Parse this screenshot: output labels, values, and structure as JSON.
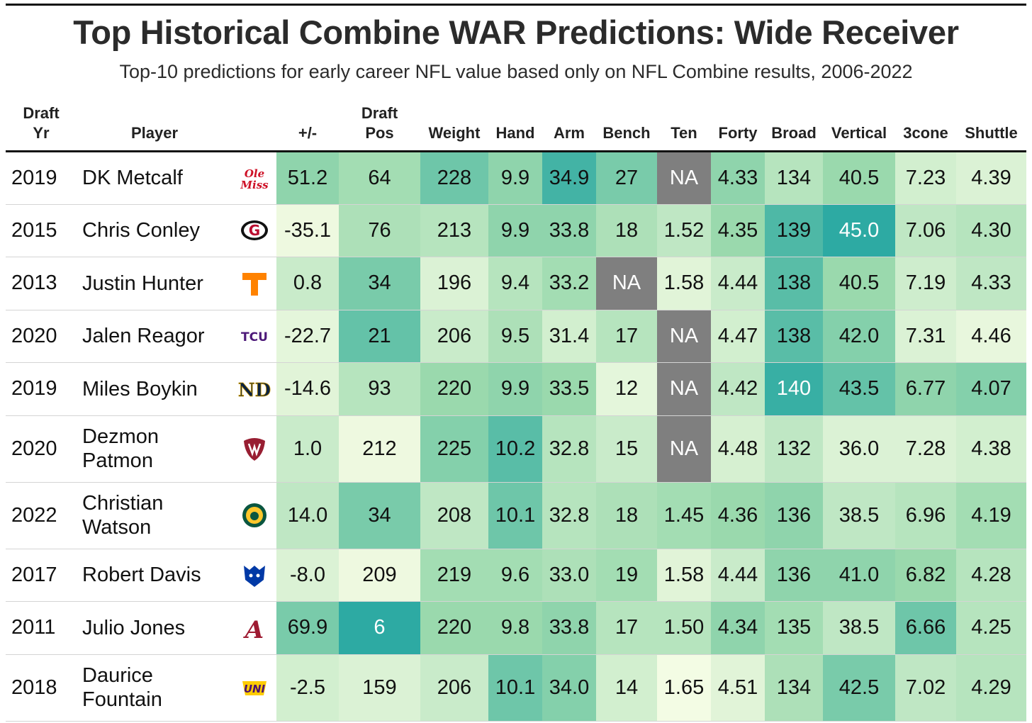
{
  "chart_data": {
    "type": "table",
    "title": "Top Historical Combine WAR Predictions: Wide Receiver",
    "subtitle": "Top-10 predictions for early career NFL value based only on NFL Combine results, 2006-2022",
    "columns": [
      {
        "key": "yr",
        "l1": "Draft",
        "l2": "Yr"
      },
      {
        "key": "player",
        "l1": "",
        "l2": "Player"
      },
      {
        "key": "logo",
        "l1": "",
        "l2": ""
      },
      {
        "key": "pm",
        "l1": "",
        "l2": "+/-"
      },
      {
        "key": "pos",
        "l1": "Draft",
        "l2": "Pos"
      },
      {
        "key": "weight",
        "l1": "",
        "l2": "Weight"
      },
      {
        "key": "hand",
        "l1": "",
        "l2": "Hand"
      },
      {
        "key": "arm",
        "l1": "",
        "l2": "Arm"
      },
      {
        "key": "bench",
        "l1": "",
        "l2": "Bench"
      },
      {
        "key": "ten",
        "l1": "",
        "l2": "Ten"
      },
      {
        "key": "forty",
        "l1": "",
        "l2": "Forty"
      },
      {
        "key": "broad",
        "l1": "",
        "l2": "Broad"
      },
      {
        "key": "vertical",
        "l1": "",
        "l2": "Vertical"
      },
      {
        "key": "cone",
        "l1": "",
        "l2": "3cone"
      },
      {
        "key": "shuttle",
        "l1": "",
        "l2": "Shuttle"
      }
    ],
    "rows": [
      {
        "yr": "2019",
        "player": [
          "DK Metcalf"
        ],
        "school": "Ole Miss",
        "pm": "51.2",
        "pos": "64",
        "weight": "228",
        "hand": "9.9",
        "arm": "34.9",
        "bench": "27",
        "ten": "NA",
        "forty": "4.33",
        "broad": "134",
        "vertical": "40.5",
        "cone": "7.23",
        "shuttle": "4.39",
        "shade": {
          "pm": 0.55,
          "pos": 0.45,
          "weight": 0.7,
          "hand": 0.55,
          "arm": 0.9,
          "bench": 0.65,
          "forty": 0.55,
          "broad": 0.35,
          "vertical": 0.5,
          "cone": 0.2,
          "shuttle": 0.15
        }
      },
      {
        "yr": "2015",
        "player": [
          "Chris Conley"
        ],
        "school": "Georgia",
        "pm": "-35.1",
        "pos": "76",
        "weight": "213",
        "hand": "9.9",
        "arm": "33.8",
        "bench": "18",
        "ten": "1.52",
        "forty": "4.35",
        "broad": "139",
        "vertical": "45.0",
        "cone": "7.06",
        "shuttle": "4.30",
        "shade": {
          "pm": 0.05,
          "pos": 0.4,
          "weight": 0.35,
          "hand": 0.55,
          "arm": 0.55,
          "bench": 0.4,
          "ten": 0.3,
          "forty": 0.5,
          "broad": 0.85,
          "vertical": 1.0,
          "cone": 0.3,
          "shuttle": 0.35
        }
      },
      {
        "yr": "2013",
        "player": [
          "Justin Hunter"
        ],
        "school": "Tennessee",
        "pm": "0.8",
        "pos": "34",
        "weight": "196",
        "hand": "9.4",
        "arm": "33.2",
        "bench": "NA",
        "ten": "1.58",
        "forty": "4.44",
        "broad": "138",
        "vertical": "40.5",
        "cone": "7.19",
        "shuttle": "4.33",
        "shade": {
          "pm": 0.25,
          "pos": 0.65,
          "weight": 0.15,
          "hand": 0.35,
          "arm": 0.45,
          "ten": 0.12,
          "forty": 0.25,
          "broad": 0.8,
          "vertical": 0.5,
          "cone": 0.22,
          "shuttle": 0.3
        }
      },
      {
        "yr": "2020",
        "player": [
          "Jalen Reagor"
        ],
        "school": "TCU",
        "pm": "-22.7",
        "pos": "21",
        "weight": "206",
        "hand": "9.5",
        "arm": "31.4",
        "bench": "17",
        "ten": "NA",
        "forty": "4.47",
        "broad": "138",
        "vertical": "42.0",
        "cone": "7.31",
        "shuttle": "4.46",
        "shade": {
          "pm": 0.1,
          "pos": 0.75,
          "weight": 0.25,
          "hand": 0.4,
          "arm": 0.2,
          "bench": 0.35,
          "forty": 0.2,
          "broad": 0.8,
          "vertical": 0.6,
          "cone": 0.15,
          "shuttle": 0.08
        }
      },
      {
        "yr": "2019",
        "player": [
          "Miles Boykin"
        ],
        "school": "Notre Dame",
        "pm": "-14.6",
        "pos": "93",
        "weight": "220",
        "hand": "9.9",
        "arm": "33.5",
        "bench": "12",
        "ten": "NA",
        "forty": "4.42",
        "broad": "140",
        "vertical": "43.5",
        "cone": "6.77",
        "shuttle": "4.07",
        "shade": {
          "pm": 0.12,
          "pos": 0.35,
          "weight": 0.5,
          "hand": 0.55,
          "arm": 0.5,
          "bench": 0.1,
          "forty": 0.3,
          "broad": 0.95,
          "vertical": 0.75,
          "cone": 0.55,
          "shuttle": 0.6
        }
      },
      {
        "yr": "2020",
        "player": [
          "Dezmon",
          "Patmon"
        ],
        "school": "Washington State",
        "pm": "1.0",
        "pos": "212",
        "weight": "225",
        "hand": "10.2",
        "arm": "32.8",
        "bench": "15",
        "ten": "NA",
        "forty": "4.48",
        "broad": "132",
        "vertical": "36.0",
        "cone": "7.28",
        "shuttle": "4.38",
        "shade": {
          "pm": 0.25,
          "pos": 0.05,
          "weight": 0.6,
          "hand": 0.8,
          "arm": 0.35,
          "bench": 0.25,
          "forty": 0.18,
          "broad": 0.3,
          "vertical": 0.15,
          "cone": 0.15,
          "shuttle": 0.2
        }
      },
      {
        "yr": "2022",
        "player": [
          "Christian",
          "Watson"
        ],
        "school": "North Dakota State",
        "pm": "14.0",
        "pos": "34",
        "weight": "208",
        "hand": "10.1",
        "arm": "32.8",
        "bench": "18",
        "ten": "1.45",
        "forty": "4.36",
        "broad": "136",
        "vertical": "38.5",
        "cone": "6.96",
        "shuttle": "4.19",
        "shade": {
          "pm": 0.3,
          "pos": 0.65,
          "weight": 0.3,
          "hand": 0.7,
          "arm": 0.35,
          "bench": 0.4,
          "ten": 0.45,
          "forty": 0.5,
          "broad": 0.55,
          "vertical": 0.3,
          "cone": 0.35,
          "shuttle": 0.45
        }
      },
      {
        "yr": "2017",
        "player": [
          "Robert Davis"
        ],
        "school": "Georgia State",
        "pm": "-8.0",
        "pos": "209",
        "weight": "219",
        "hand": "9.6",
        "arm": "33.0",
        "bench": "19",
        "ten": "1.58",
        "forty": "4.44",
        "broad": "136",
        "vertical": "41.0",
        "cone": "6.82",
        "shuttle": "4.28",
        "shade": {
          "pm": 0.15,
          "pos": 0.05,
          "weight": 0.45,
          "hand": 0.45,
          "arm": 0.4,
          "bench": 0.45,
          "ten": 0.12,
          "forty": 0.25,
          "broad": 0.55,
          "vertical": 0.55,
          "cone": 0.5,
          "shuttle": 0.35
        }
      },
      {
        "yr": "2011",
        "player": [
          "Julio Jones"
        ],
        "school": "Alabama",
        "pm": "69.9",
        "pos": "6",
        "weight": "220",
        "hand": "9.8",
        "arm": "33.8",
        "bench": "17",
        "ten": "1.50",
        "forty": "4.34",
        "broad": "135",
        "vertical": "38.5",
        "cone": "6.66",
        "shuttle": "4.25",
        "shade": {
          "pm": 0.65,
          "pos": 1.0,
          "weight": 0.5,
          "hand": 0.5,
          "arm": 0.55,
          "bench": 0.35,
          "ten": 0.35,
          "forty": 0.55,
          "broad": 0.45,
          "vertical": 0.3,
          "cone": 0.7,
          "shuttle": 0.35
        }
      },
      {
        "yr": "2018",
        "player": [
          "Daurice",
          "Fountain"
        ],
        "school": "Northern Iowa",
        "pm": "-2.5",
        "pos": "159",
        "weight": "206",
        "hand": "10.1",
        "arm": "34.0",
        "bench": "14",
        "ten": "1.65",
        "forty": "4.51",
        "broad": "134",
        "vertical": "42.5",
        "cone": "7.02",
        "shuttle": "4.29",
        "shade": {
          "pm": 0.2,
          "pos": 0.15,
          "weight": 0.25,
          "hand": 0.7,
          "arm": 0.6,
          "bench": 0.2,
          "ten": 0.02,
          "forty": 0.12,
          "broad": 0.4,
          "vertical": 0.65,
          "cone": 0.3,
          "shuttle": 0.35
        }
      }
    ],
    "color_scale": {
      "low": "#f7fde6",
      "mid": "#9ad9ad",
      "high": "#2daaa3",
      "na": "#7f7f7f"
    }
  }
}
